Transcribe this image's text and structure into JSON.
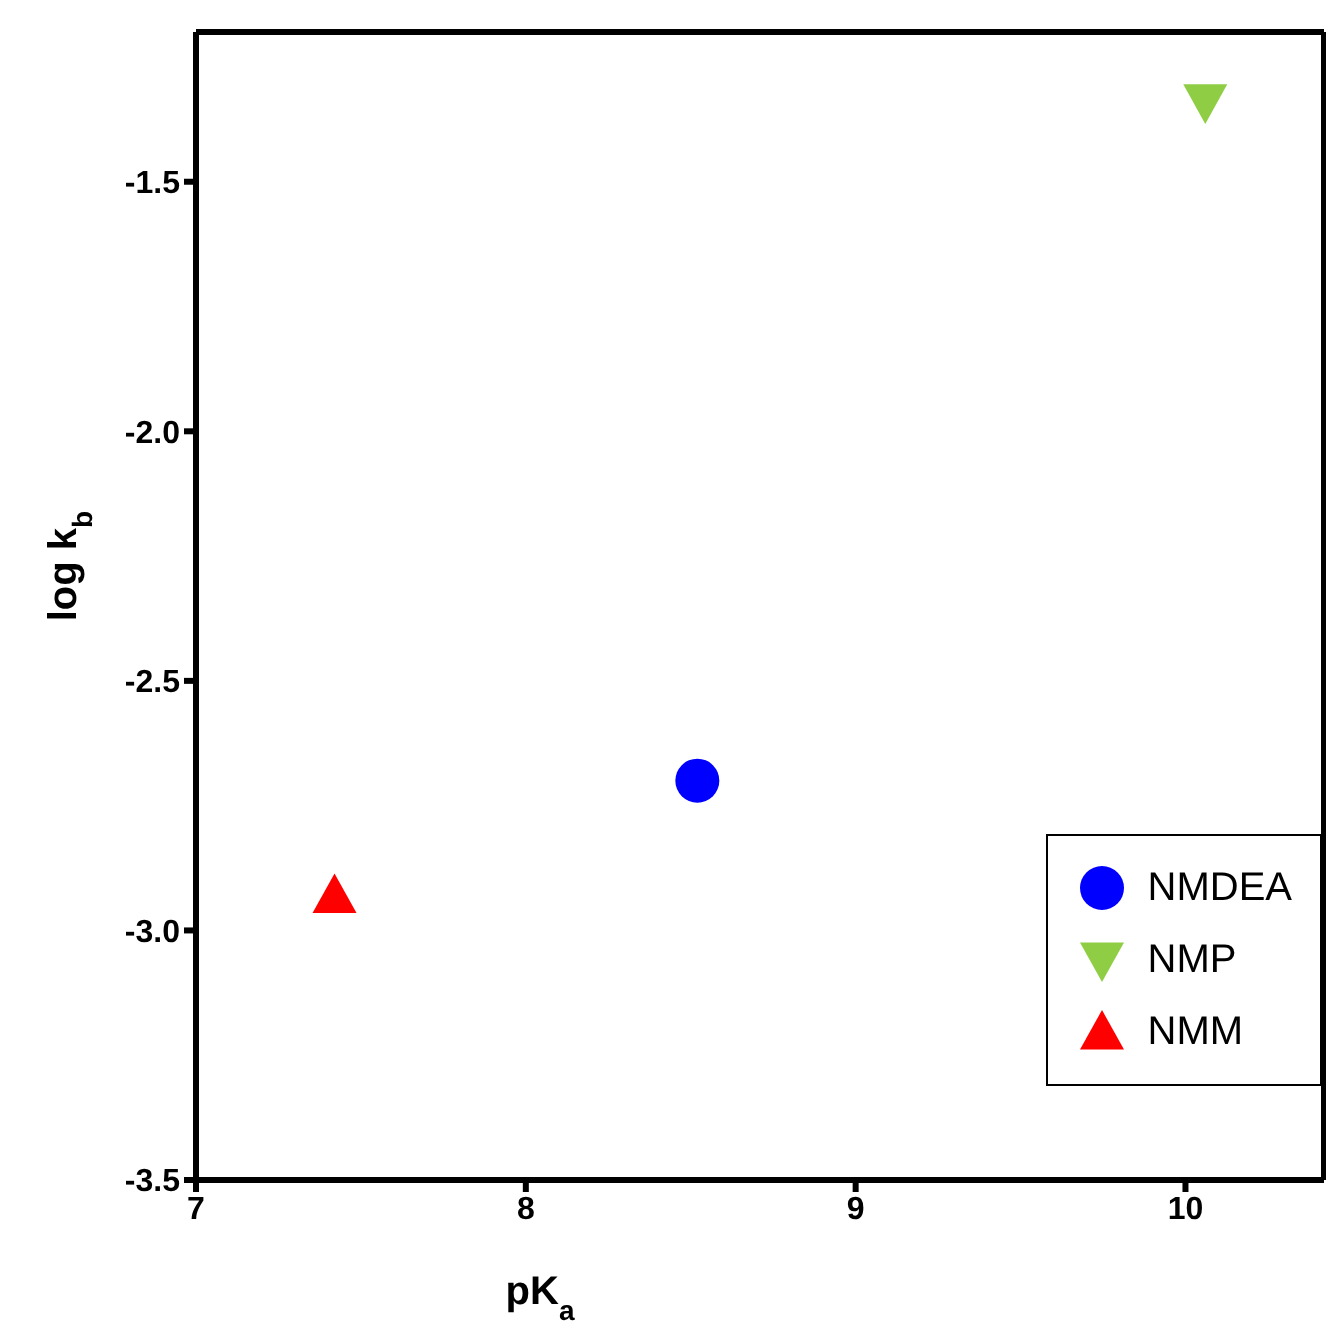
{
  "chart_data": {
    "type": "scatter",
    "xlabel": "pK$_{a}$",
    "ylabel": "log k$_{b}$",
    "xlim": [
      7,
      10.42
    ],
    "xticks": [
      7,
      8,
      9,
      10
    ],
    "ylim": [
      -3.5,
      -1.2
    ],
    "yticks": [
      {
        "value": -3.5,
        "label": "-3.5"
      },
      {
        "value": -3,
        "label": "-3.0"
      },
      {
        "value": -2.5,
        "label": "-2.5"
      },
      {
        "value": -2,
        "label": "-2.0"
      },
      {
        "value": -1.5,
        "label": "-1.5"
      }
    ],
    "grid": false,
    "legend": "bottom right",
    "series": [
      {
        "name": "NMDEA",
        "color": "#0000ff",
        "marker": "circle",
        "x": [
          8.52
        ],
        "values": [
          -2.7
        ]
      },
      {
        "name": "NMP",
        "color": "#8fce44",
        "marker": "triangle-down",
        "x": [
          10.06
        ],
        "values": [
          -1.34
        ]
      },
      {
        "name": "NMM",
        "color": "#ff0000",
        "marker": "triangle",
        "x": [
          7.42
        ],
        "values": [
          -2.93
        ]
      }
    ]
  }
}
